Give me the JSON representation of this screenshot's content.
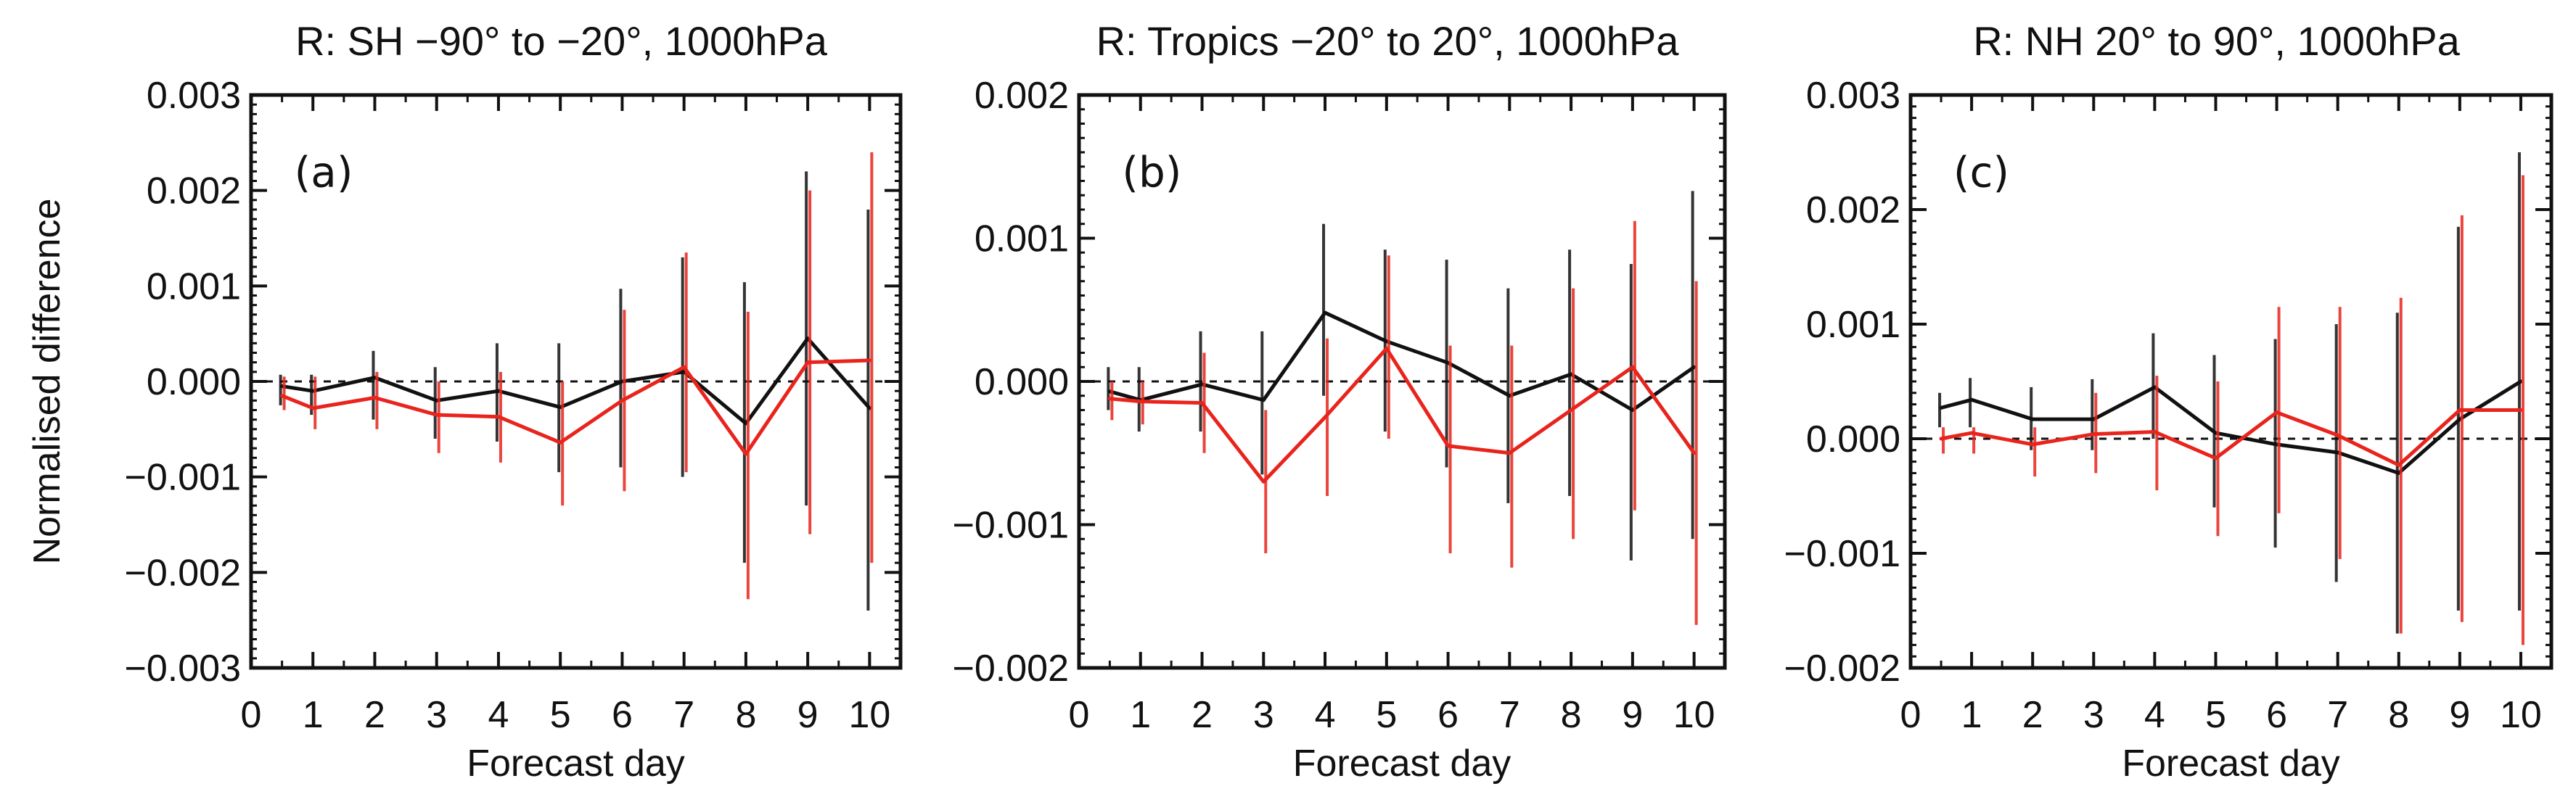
{
  "figure": {
    "ylabel": "Normalised difference"
  },
  "colors": {
    "series_black": "#111111",
    "series_red": "#e8241c"
  },
  "chart_data": [
    {
      "type": "line",
      "panel_label": "(a)",
      "title": "R: SH −90° to −20°, 1000hPa",
      "xlabel": "Forecast day",
      "ylabel": "Normalised difference",
      "xlim": [
        0,
        10.5
      ],
      "ylim": [
        -0.003,
        0.003
      ],
      "xticks": [
        0,
        1,
        2,
        3,
        4,
        5,
        6,
        7,
        8,
        9,
        10
      ],
      "yticks": [
        -0.003,
        -0.002,
        -0.001,
        0.0,
        0.001,
        0.002,
        0.003
      ],
      "ytick_labels": [
        "−0.003",
        "−0.002",
        "−0.001",
        "0.000",
        "0.001",
        "0.002",
        "0.003"
      ],
      "zero_line": "dashed",
      "x": [
        0.5,
        1,
        2,
        3,
        4,
        5,
        6,
        7,
        8,
        9,
        10
      ],
      "series": [
        {
          "name": "black",
          "color": "#111111",
          "values": [
            -5e-05,
            -0.0001,
            4e-05,
            -0.0002,
            -0.0001,
            -0.00027,
            0.0,
            0.0001,
            -0.00044,
            0.00045,
            -0.00028
          ],
          "err_low": [
            -0.00025,
            -0.00035,
            -0.0004,
            -0.0006,
            -0.00063,
            -0.00095,
            -0.0009,
            -0.001,
            -0.0019,
            -0.0013,
            -0.0024
          ],
          "err_high": [
            7e-05,
            7e-05,
            0.00032,
            0.00015,
            0.0004,
            0.0004,
            0.00097,
            0.0013,
            0.00104,
            0.0022,
            0.0018
          ]
        },
        {
          "name": "red",
          "color": "#e8241c",
          "values": [
            -0.00015,
            -0.00028,
            -0.00017,
            -0.00035,
            -0.00037,
            -0.00064,
            -0.0002,
            0.00015,
            -0.00076,
            0.0002,
            0.00022
          ],
          "err_low": [
            -0.0003,
            -0.0005,
            -0.0005,
            -0.00075,
            -0.00085,
            -0.0013,
            -0.00115,
            -0.00095,
            -0.00228,
            -0.0016,
            -0.0019
          ],
          "err_high": [
            5e-05,
            5e-05,
            0.0001,
            0.0,
            0.0001,
            0.0,
            0.00075,
            0.00135,
            0.00073,
            0.002,
            0.0024
          ]
        }
      ]
    },
    {
      "type": "line",
      "panel_label": "(b)",
      "title": "R: Tropics −20° to 20°, 1000hPa",
      "xlabel": "Forecast day",
      "ylabel": "",
      "xlim": [
        0,
        10.5
      ],
      "ylim": [
        -0.002,
        0.002
      ],
      "xticks": [
        0,
        1,
        2,
        3,
        4,
        5,
        6,
        7,
        8,
        9,
        10
      ],
      "yticks": [
        -0.002,
        -0.001,
        0.0,
        0.001,
        0.002
      ],
      "ytick_labels": [
        "−0.002",
        "−0.001",
        "0.000",
        "0.001",
        "0.002"
      ],
      "zero_line": "dashed",
      "x": [
        0.5,
        1,
        2,
        3,
        4,
        5,
        6,
        7,
        8,
        9,
        10
      ],
      "series": [
        {
          "name": "black",
          "color": "#111111",
          "values": [
            -7e-05,
            -0.00013,
            -2e-05,
            -0.00013,
            0.00048,
            0.00028,
            0.00013,
            -0.0001,
            5e-05,
            -0.0002,
            0.0001
          ],
          "err_low": [
            -0.0002,
            -0.00035,
            -0.00035,
            -0.00065,
            -0.0001,
            -0.00035,
            -0.0006,
            -0.00085,
            -0.0008,
            -0.00125,
            -0.0011
          ],
          "err_high": [
            0.0001,
            0.0001,
            0.00035,
            0.00035,
            0.0011,
            0.00092,
            0.00085,
            0.00065,
            0.00092,
            0.00082,
            0.00133
          ]
        },
        {
          "name": "red",
          "color": "#e8241c",
          "values": [
            -0.00012,
            -0.00014,
            -0.00015,
            -0.0007,
            -0.00025,
            0.00023,
            -0.00045,
            -0.0005,
            -0.0002,
            0.0001,
            -0.0005
          ],
          "err_low": [
            -0.00027,
            -0.0003,
            -0.0005,
            -0.0012,
            -0.0008,
            -0.0004,
            -0.0012,
            -0.0013,
            -0.0011,
            -0.0009,
            -0.0017
          ],
          "err_high": [
            0.0,
            0.0,
            0.0002,
            -0.0002,
            0.0003,
            0.00088,
            0.00025,
            0.00025,
            0.00065,
            0.00112,
            0.0007
          ]
        }
      ]
    },
    {
      "type": "line",
      "panel_label": "(c)",
      "title": "R: NH 20° to 90°, 1000hPa",
      "xlabel": "Forecast day",
      "ylabel": "",
      "xlim": [
        0,
        10.5
      ],
      "ylim": [
        -0.002,
        0.003
      ],
      "xticks": [
        0,
        1,
        2,
        3,
        4,
        5,
        6,
        7,
        8,
        9,
        10
      ],
      "yticks": [
        -0.002,
        -0.001,
        0.0,
        0.001,
        0.002,
        0.003
      ],
      "ytick_labels": [
        "−0.002",
        "−0.001",
        "0.000",
        "0.001",
        "0.002",
        "0.003"
      ],
      "zero_line": "dashed",
      "x": [
        0.5,
        1,
        2,
        3,
        4,
        5,
        6,
        7,
        8,
        9,
        10
      ],
      "series": [
        {
          "name": "black",
          "color": "#111111",
          "values": [
            0.00027,
            0.00034,
            0.00017,
            0.00017,
            0.00045,
            5e-05,
            -5e-05,
            -0.00012,
            -0.0003,
            0.00017,
            0.0005
          ],
          "err_low": [
            0.0001,
            0.0001,
            -0.0001,
            -0.0001,
            0.0,
            -0.0006,
            -0.00095,
            -0.00125,
            -0.0017,
            -0.0015,
            -0.0015
          ],
          "err_high": [
            0.0004,
            0.00053,
            0.00045,
            0.00052,
            0.00092,
            0.00073,
            0.00087,
            0.001,
            0.0011,
            0.00185,
            0.0025
          ]
        },
        {
          "name": "red",
          "color": "#e8241c",
          "values": [
            0.0,
            5e-05,
            -5e-05,
            4e-05,
            6e-05,
            -0.00017,
            0.00023,
            3e-05,
            -0.00023,
            0.00025,
            0.00025
          ],
          "err_low": [
            -0.00013,
            -0.00013,
            -0.00033,
            -0.0003,
            -0.00045,
            -0.00085,
            -0.00065,
            -0.00105,
            -0.0017,
            -0.0016,
            -0.0018
          ],
          "err_high": [
            0.0001,
            0.0001,
            0.0001,
            0.0004,
            0.00055,
            0.0005,
            0.00115,
            0.00115,
            0.00123,
            0.00195,
            0.0023
          ]
        }
      ]
    }
  ]
}
